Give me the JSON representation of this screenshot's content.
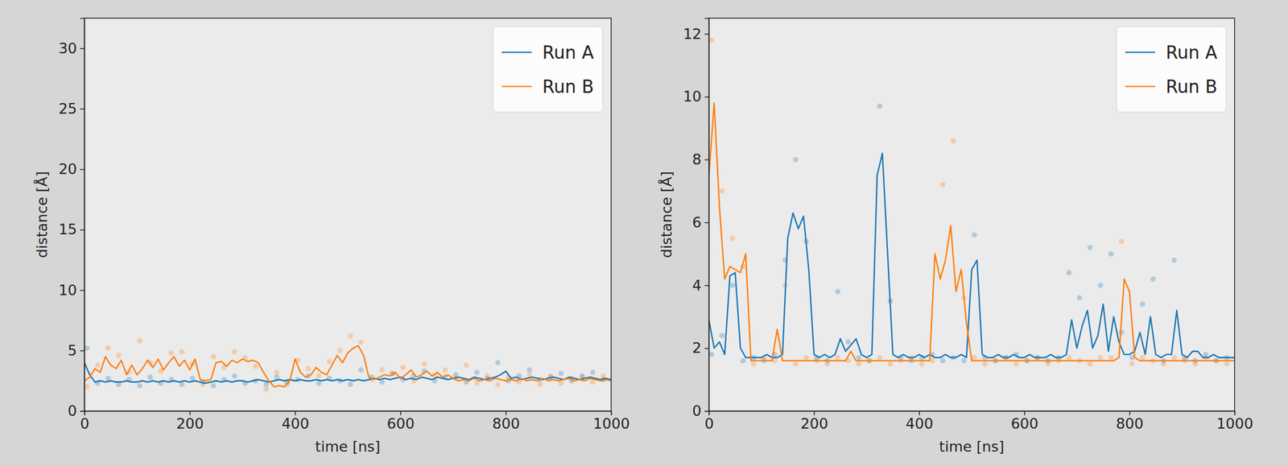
{
  "chart_data": [
    {
      "type": "line",
      "x_label": "time [ns]",
      "y_label": "distance [Å]",
      "legend": "upper right",
      "xlim": [
        0,
        1000
      ],
      "xticks": [
        0,
        200,
        400,
        600,
        800,
        1000
      ],
      "ylim": [
        0,
        32.5
      ],
      "yticks": [
        0,
        5,
        10,
        15,
        20,
        25,
        30
      ],
      "x": [
        0,
        10,
        20,
        30,
        40,
        50,
        60,
        70,
        80,
        90,
        100,
        110,
        120,
        130,
        140,
        150,
        160,
        170,
        180,
        190,
        200,
        210,
        220,
        230,
        240,
        250,
        260,
        270,
        280,
        290,
        300,
        310,
        320,
        330,
        340,
        350,
        360,
        370,
        380,
        390,
        400,
        410,
        420,
        430,
        440,
        450,
        460,
        470,
        480,
        490,
        500,
        510,
        520,
        530,
        540,
        550,
        560,
        570,
        580,
        590,
        600,
        610,
        620,
        630,
        640,
        650,
        660,
        670,
        680,
        690,
        700,
        710,
        720,
        730,
        740,
        750,
        760,
        770,
        780,
        790,
        800,
        810,
        820,
        830,
        840,
        850,
        860,
        870,
        880,
        890,
        900,
        910,
        920,
        930,
        940,
        950,
        960,
        970,
        980,
        990,
        1000
      ],
      "scatter_x": [
        5,
        25,
        45,
        65,
        85,
        105,
        125,
        145,
        165,
        185,
        205,
        225,
        245,
        265,
        285,
        305,
        325,
        345,
        365,
        385,
        405,
        425,
        445,
        465,
        485,
        505,
        525,
        545,
        565,
        585,
        605,
        625,
        645,
        665,
        685,
        705,
        725,
        745,
        765,
        785,
        805,
        825,
        845,
        865,
        885,
        905,
        925,
        945,
        965,
        985
      ],
      "series": [
        {
          "name": "Run A",
          "color": "#1f77b4",
          "values": [
            4.0,
            3.0,
            2.4,
            2.5,
            2.4,
            2.5,
            2.4,
            2.4,
            2.5,
            2.4,
            2.4,
            2.5,
            2.4,
            2.5,
            2.4,
            2.5,
            2.4,
            2.5,
            2.4,
            2.5,
            2.4,
            2.5,
            2.4,
            2.3,
            2.4,
            2.5,
            2.4,
            2.5,
            2.4,
            2.5,
            2.5,
            2.4,
            2.5,
            2.6,
            2.5,
            2.4,
            2.5,
            2.6,
            2.5,
            2.6,
            2.5,
            2.6,
            2.5,
            2.5,
            2.6,
            2.5,
            2.6,
            2.5,
            2.6,
            2.5,
            2.6,
            2.5,
            2.6,
            2.5,
            2.6,
            2.7,
            2.6,
            2.7,
            2.6,
            2.7,
            2.8,
            2.6,
            2.7,
            2.6,
            2.8,
            2.7,
            2.6,
            2.8,
            2.7,
            2.6,
            2.7,
            2.8,
            2.7,
            2.6,
            2.8,
            2.7,
            2.6,
            2.7,
            2.8,
            3.0,
            3.3,
            2.7,
            2.8,
            2.6,
            2.7,
            2.8,
            2.7,
            2.6,
            2.7,
            2.8,
            2.7,
            2.6,
            2.8,
            2.7,
            2.6,
            2.7,
            2.8,
            2.7,
            2.6,
            2.7,
            2.6
          ],
          "scatter_values": [
            5.2,
            2.3,
            2.7,
            2.2,
            2.6,
            2.1,
            2.8,
            2.3,
            2.6,
            2.2,
            2.7,
            2.4,
            2.1,
            2.6,
            2.9,
            2.3,
            2.5,
            2.2,
            2.8,
            2.4,
            2.6,
            2.9,
            2.3,
            2.7,
            2.5,
            2.2,
            3.4,
            2.8,
            2.4,
            3.1,
            2.6,
            2.9,
            3.3,
            2.5,
            2.8,
            3.0,
            2.4,
            3.2,
            2.7,
            4.0,
            2.5,
            2.9,
            3.4,
            2.6,
            2.8,
            3.1,
            2.5,
            2.9,
            3.2,
            2.6
          ]
        },
        {
          "name": "Run B",
          "color": "#ff7f0e",
          "values": [
            2.5,
            2.8,
            3.5,
            3.2,
            4.5,
            3.8,
            3.5,
            4.2,
            3.0,
            3.8,
            3.0,
            3.5,
            4.2,
            3.6,
            4.3,
            3.4,
            4.0,
            4.5,
            3.7,
            4.2,
            3.4,
            4.3,
            2.6,
            2.5,
            2.6,
            4.0,
            4.1,
            3.7,
            4.2,
            4.0,
            4.3,
            4.1,
            4.2,
            4.0,
            3.2,
            2.5,
            2.0,
            2.1,
            2.0,
            2.5,
            4.3,
            3.2,
            2.8,
            3.0,
            3.6,
            3.2,
            3.0,
            3.8,
            4.6,
            4.0,
            4.8,
            5.2,
            5.4,
            4.6,
            2.8,
            2.6,
            2.8,
            3.0,
            2.9,
            3.2,
            2.7,
            3.0,
            3.4,
            2.8,
            3.0,
            3.3,
            2.9,
            3.2,
            2.8,
            3.0,
            2.7,
            2.5,
            2.6,
            2.5,
            2.7,
            2.5,
            2.6,
            2.5,
            2.7,
            2.6,
            2.5,
            2.6,
            2.5,
            2.7,
            2.5,
            2.6,
            2.5,
            2.7,
            2.5,
            2.6,
            2.5,
            2.6,
            2.7,
            2.5,
            2.6,
            2.5,
            2.7,
            2.6,
            2.5,
            2.6,
            2.5
          ],
          "scatter_values": [
            2.0,
            3.8,
            5.2,
            4.6,
            3.2,
            5.8,
            4.0,
            3.3,
            4.8,
            4.9,
            3.9,
            2.2,
            4.5,
            3.6,
            4.9,
            4.4,
            3.7,
            1.8,
            3.2,
            2.2,
            4.2,
            3.5,
            2.9,
            4.1,
            5.0,
            6.2,
            5.7,
            2.6,
            3.4,
            3.1,
            3.6,
            2.5,
            3.9,
            2.9,
            3.4,
            2.7,
            3.8,
            2.3,
            2.9,
            2.2,
            2.8,
            2.4,
            3.0,
            2.2,
            2.9,
            2.3,
            2.7,
            2.8,
            2.4,
            2.9
          ]
        }
      ]
    },
    {
      "type": "line",
      "x_label": "time [ns]",
      "y_label": "distance [Å]",
      "legend": "upper right",
      "xlim": [
        0,
        1000
      ],
      "xticks": [
        0,
        200,
        400,
        600,
        800,
        1000
      ],
      "ylim": [
        0,
        12.5
      ],
      "yticks": [
        0,
        2,
        4,
        6,
        8,
        10,
        12
      ],
      "x": [
        0,
        10,
        20,
        30,
        40,
        50,
        60,
        70,
        80,
        90,
        100,
        110,
        120,
        130,
        140,
        150,
        160,
        170,
        180,
        190,
        200,
        210,
        220,
        230,
        240,
        250,
        260,
        270,
        280,
        290,
        300,
        310,
        320,
        330,
        340,
        350,
        360,
        370,
        380,
        390,
        400,
        410,
        420,
        430,
        440,
        450,
        460,
        470,
        480,
        490,
        500,
        510,
        520,
        530,
        540,
        550,
        560,
        570,
        580,
        590,
        600,
        610,
        620,
        630,
        640,
        650,
        660,
        670,
        680,
        690,
        700,
        710,
        720,
        730,
        740,
        750,
        760,
        770,
        780,
        790,
        800,
        810,
        820,
        830,
        840,
        850,
        860,
        870,
        880,
        890,
        900,
        910,
        920,
        930,
        940,
        950,
        960,
        970,
        980,
        990,
        1000
      ],
      "scatter_x": [
        5,
        25,
        45,
        65,
        85,
        105,
        125,
        145,
        165,
        185,
        205,
        225,
        245,
        265,
        285,
        305,
        325,
        345,
        365,
        385,
        405,
        425,
        445,
        465,
        485,
        505,
        525,
        545,
        565,
        585,
        605,
        625,
        645,
        665,
        685,
        705,
        725,
        745,
        765,
        785,
        805,
        825,
        845,
        865,
        885,
        905,
        925,
        945,
        965,
        985
      ],
      "series": [
        {
          "name": "Run A",
          "color": "#1f77b4",
          "values": [
            2.9,
            2.0,
            2.2,
            1.8,
            4.3,
            4.4,
            2.0,
            1.7,
            1.7,
            1.7,
            1.7,
            1.8,
            1.7,
            1.7,
            1.8,
            5.5,
            6.3,
            5.8,
            6.2,
            4.5,
            1.8,
            1.7,
            1.8,
            1.7,
            1.8,
            2.3,
            1.9,
            2.1,
            2.3,
            1.8,
            1.7,
            1.8,
            7.5,
            8.2,
            5.0,
            1.8,
            1.7,
            1.8,
            1.7,
            1.7,
            1.8,
            1.7,
            1.8,
            1.7,
            1.7,
            1.8,
            1.7,
            1.7,
            1.8,
            1.7,
            4.5,
            4.8,
            1.8,
            1.7,
            1.7,
            1.8,
            1.7,
            1.7,
            1.8,
            1.7,
            1.7,
            1.8,
            1.7,
            1.7,
            1.7,
            1.8,
            1.7,
            1.7,
            1.8,
            2.9,
            2.0,
            2.7,
            3.2,
            2.0,
            2.4,
            3.4,
            1.9,
            3.0,
            2.2,
            1.8,
            1.8,
            1.9,
            2.5,
            1.8,
            3.0,
            1.8,
            1.7,
            1.8,
            1.8,
            3.2,
            1.8,
            1.7,
            1.9,
            1.9,
            1.7,
            1.7,
            1.8,
            1.7,
            1.7,
            1.7,
            1.7
          ],
          "scatter_values": [
            1.8,
            2.4,
            4.0,
            1.6,
            1.7,
            1.6,
            1.8,
            4.8,
            8.0,
            5.4,
            1.7,
            1.6,
            3.8,
            2.2,
            1.7,
            1.6,
            9.7,
            3.5,
            1.7,
            1.6,
            1.7,
            1.8,
            1.6,
            1.7,
            1.6,
            5.6,
            1.7,
            1.6,
            1.7,
            1.8,
            1.6,
            1.7,
            1.6,
            1.7,
            4.4,
            3.6,
            5.2,
            4.0,
            5.0,
            2.5,
            1.7,
            3.4,
            4.2,
            1.6,
            4.8,
            1.7,
            1.6,
            1.8,
            1.6,
            1.7
          ]
        },
        {
          "name": "Run B",
          "color": "#ff7f0e",
          "values": [
            7.5,
            9.8,
            6.5,
            4.2,
            4.6,
            4.5,
            4.4,
            5.0,
            1.6,
            1.6,
            1.6,
            1.6,
            1.6,
            2.6,
            1.6,
            1.6,
            1.6,
            1.6,
            1.6,
            1.6,
            1.6,
            1.6,
            1.6,
            1.6,
            1.6,
            1.6,
            1.6,
            1.9,
            1.6,
            1.6,
            1.6,
            1.6,
            1.6,
            1.6,
            1.6,
            1.6,
            1.6,
            1.6,
            1.6,
            1.6,
            1.6,
            1.6,
            1.6,
            5.0,
            4.2,
            4.8,
            5.9,
            3.8,
            4.5,
            2.8,
            1.6,
            1.6,
            1.6,
            1.6,
            1.6,
            1.6,
            1.6,
            1.6,
            1.6,
            1.6,
            1.6,
            1.6,
            1.6,
            1.6,
            1.6,
            1.6,
            1.6,
            1.6,
            1.6,
            1.6,
            1.6,
            1.6,
            1.6,
            1.6,
            1.6,
            1.6,
            1.6,
            1.6,
            1.7,
            4.2,
            3.8,
            1.7,
            1.6,
            1.6,
            1.6,
            1.6,
            1.6,
            1.6,
            1.6,
            1.6,
            1.6,
            1.6,
            1.6,
            1.6,
            1.6,
            1.6,
            1.6,
            1.6,
            1.6,
            1.6,
            1.6
          ],
          "scatter_values": [
            11.8,
            7.0,
            5.5,
            4.6,
            1.5,
            1.7,
            1.6,
            4.0,
            1.5,
            1.7,
            1.6,
            1.5,
            1.7,
            1.6,
            1.5,
            1.6,
            1.7,
            1.5,
            1.6,
            1.7,
            1.5,
            1.6,
            7.2,
            8.6,
            3.6,
            1.7,
            1.5,
            1.6,
            1.7,
            1.5,
            1.6,
            1.7,
            1.5,
            1.6,
            1.7,
            1.6,
            1.5,
            1.7,
            1.7,
            5.4,
            1.5,
            1.7,
            1.6,
            1.5,
            1.7,
            1.6,
            1.5,
            1.7,
            1.6,
            1.5
          ]
        }
      ]
    }
  ]
}
